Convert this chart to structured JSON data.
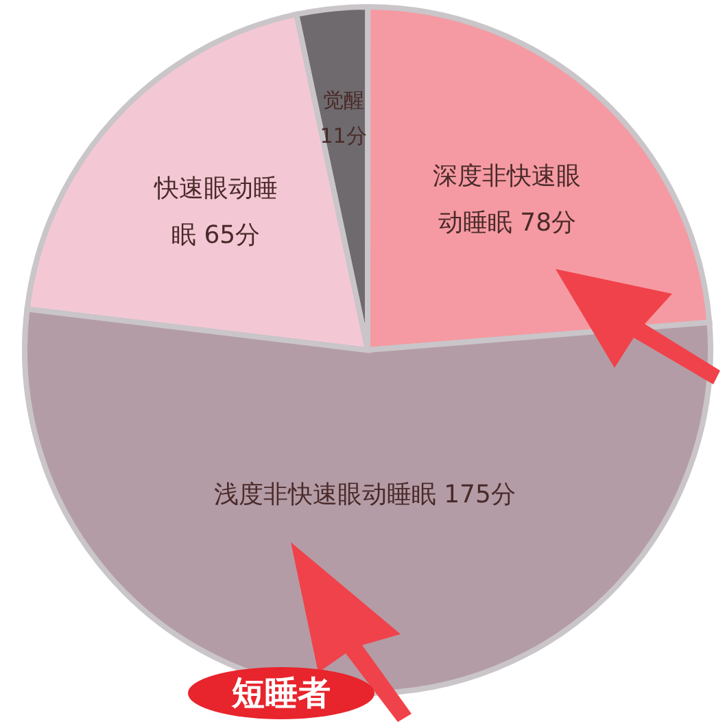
{
  "chart_data": {
    "type": "pie",
    "categories": [
      "觉醒",
      "深度非快速眼动睡眠",
      "浅度非快速眼动睡眠",
      "快速眼动睡眠"
    ],
    "values": [
      11,
      78,
      175,
      65
    ],
    "value_labels": [
      "11分",
      "78分",
      "175分",
      "65分"
    ],
    "colors": [
      "#6e6a6d",
      "#f59aa2",
      "#b49ca6",
      "#f3c8d4"
    ],
    "annotations": [
      "短睡者"
    ]
  }
}
